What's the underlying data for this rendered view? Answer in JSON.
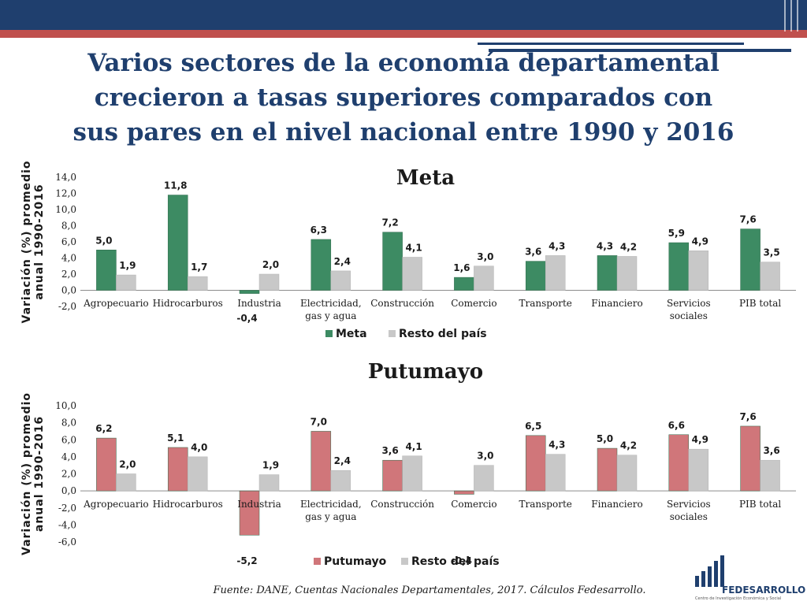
{
  "slide": {
    "title_line1": "Varios sectores de la economía departamental",
    "title_line2": "crecieron a tasas superiores comparados con",
    "title_line3": "sus pares en el nivel nacional entre 1990 y 2016",
    "source": "Fuente: DANE, Cuentas Nacionales Departamentales, 2017. Cálculos Fedesarrollo.",
    "logo_name": "FEDESARROLLO",
    "logo_sub": "Centro de Investigación Económica y Social"
  },
  "colors": {
    "navy": "#1f3f6e",
    "red_stripe": "#c0504d",
    "meta_green": "#3d8b63",
    "putumayo_red": "#d0767a",
    "resto_grey": "#c8c8c8"
  },
  "chart_data": [
    {
      "type": "bar",
      "title": "Meta",
      "ylabel_line1": "Variación (%) promedio",
      "ylabel_line2": "anual 1990-2016",
      "ylim": [
        -2,
        14
      ],
      "yticks": [
        "-2,0",
        "0,0",
        "2,0",
        "4,0",
        "6,0",
        "8,0",
        "10,0",
        "12,0",
        "14,0"
      ],
      "categories": [
        [
          "Agropecuario"
        ],
        [
          "Hidrocarburos"
        ],
        [
          "Industria"
        ],
        [
          "Electricidad,",
          "gas y agua"
        ],
        [
          "Construcción"
        ],
        [
          "Comercio"
        ],
        [
          "Transporte"
        ],
        [
          "Financiero"
        ],
        [
          "Servicios",
          "sociales"
        ],
        [
          "PIB total"
        ]
      ],
      "series": [
        {
          "name": "Meta",
          "values": [
            5.0,
            11.8,
            -0.4,
            6.3,
            7.2,
            1.6,
            3.6,
            4.3,
            5.9,
            7.6
          ],
          "labels": [
            "5,0",
            "11,8",
            "-0,4",
            "6,3",
            "7,2",
            "1,6",
            "3,6",
            "4,3",
            "5,9",
            "7,6"
          ]
        },
        {
          "name": "Resto del país",
          "values": [
            1.9,
            1.7,
            2.0,
            2.4,
            4.1,
            3.0,
            4.3,
            4.2,
            4.9,
            3.5
          ],
          "labels": [
            "1,9",
            "1,7",
            "2,0",
            "2,4",
            "4,1",
            "3,0",
            "4,3",
            "4,2",
            "4,9",
            "3,5"
          ]
        }
      ]
    },
    {
      "type": "bar",
      "title": "Putumayo",
      "ylabel_line1": "Variación (%) promedio",
      "ylabel_line2": "anual 1990-2016",
      "ylim": [
        -6,
        10
      ],
      "yticks": [
        "-6,0",
        "-4,0",
        "-2,0",
        "0,0",
        "2,0",
        "4,0",
        "6,0",
        "8,0",
        "10,0"
      ],
      "categories": [
        [
          "Agropecuario"
        ],
        [
          "Hidrocarburos"
        ],
        [
          "Industria"
        ],
        [
          "Electricidad,",
          "gas y agua"
        ],
        [
          "Construcción"
        ],
        [
          "Comercio"
        ],
        [
          "Transporte"
        ],
        [
          "Financiero"
        ],
        [
          "Servicios",
          "sociales"
        ],
        [
          "PIB total"
        ]
      ],
      "series": [
        {
          "name": "Putumayo",
          "values": [
            6.2,
            5.1,
            -5.2,
            7.0,
            3.6,
            -0.4,
            6.5,
            5.0,
            6.6,
            7.6
          ],
          "labels": [
            "6,2",
            "5,1",
            "-5,2",
            "7,0",
            "3,6",
            "-0,4",
            "6,5",
            "5,0",
            "6,6",
            "7,6"
          ]
        },
        {
          "name": "Resto del país",
          "values": [
            2.0,
            4.0,
            1.9,
            2.4,
            4.1,
            3.0,
            4.3,
            4.2,
            4.9,
            3.6
          ],
          "labels": [
            "2,0",
            "4,0",
            "1,9",
            "2,4",
            "4,1",
            "3,0",
            "4,3",
            "4,2",
            "4,9",
            "3,6"
          ]
        }
      ]
    }
  ]
}
